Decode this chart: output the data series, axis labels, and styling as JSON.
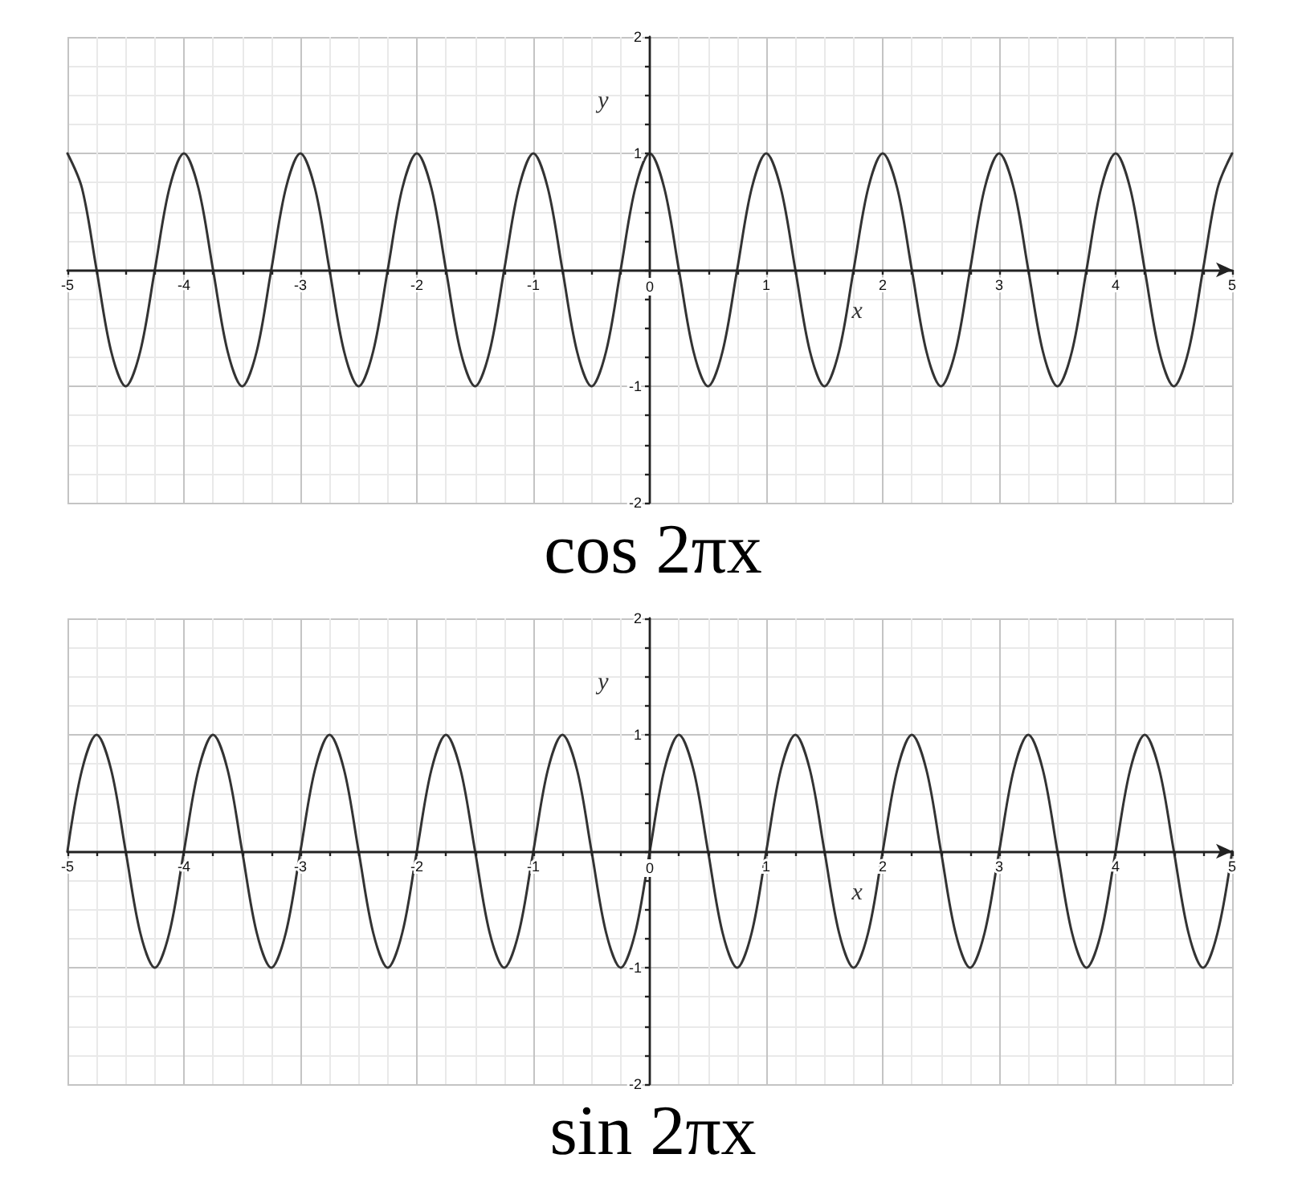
{
  "chart_data": [
    {
      "type": "line",
      "title": "cos 2πx",
      "xlabel": "x",
      "ylabel": "y",
      "x": [
        -5,
        -4.875,
        -4.75,
        -4.625,
        -4.5,
        -4.375,
        -4.25,
        -4.125,
        -4,
        -3.875,
        -3.75,
        -3.625,
        -3.5,
        -3.375,
        -3.25,
        -3.125,
        -3,
        -2.875,
        -2.75,
        -2.625,
        -2.5,
        -2.375,
        -2.25,
        -2.125,
        -2,
        -1.875,
        -1.75,
        -1.625,
        -1.5,
        -1.375,
        -1.25,
        -1.125,
        -1,
        -0.875,
        -0.75,
        -0.625,
        -0.5,
        -0.375,
        -0.25,
        -0.125,
        0,
        0.125,
        0.25,
        0.375,
        0.5,
        0.625,
        0.75,
        0.875,
        1,
        1.125,
        1.25,
        1.375,
        1.5,
        1.625,
        1.75,
        1.875,
        2,
        2.125,
        2.25,
        2.375,
        2.5,
        2.625,
        2.75,
        2.875,
        3,
        3.125,
        3.25,
        3.375,
        3.5,
        3.625,
        3.75,
        3.875,
        4,
        4.125,
        4.25,
        4.375,
        4.5,
        4.625,
        4.75,
        4.875,
        5
      ],
      "series": [
        {
          "color": "#333333",
          "values": [
            1,
            0.7,
            0,
            -0.7,
            -1,
            -0.7,
            0,
            0.7,
            1,
            0.7,
            0,
            -0.7,
            -1,
            -0.7,
            0,
            0.7,
            1,
            0.7,
            0,
            -0.7,
            -1,
            -0.7,
            0,
            0.7,
            1,
            0.7,
            0,
            -0.7,
            -1,
            -0.7,
            0,
            0.7,
            1,
            0.7,
            0,
            -0.7,
            -1,
            -0.7,
            0,
            0.7,
            1,
            0.7,
            0,
            -0.7,
            -1,
            -0.7,
            0,
            0.7,
            1,
            0.7,
            0,
            -0.7,
            -1,
            -0.7,
            0,
            0.7,
            1,
            0.7,
            0,
            -0.7,
            -1,
            -0.7,
            0,
            0.7,
            1,
            0.7,
            0,
            -0.7,
            -1,
            -0.7,
            0,
            0.7,
            1,
            0.7,
            0,
            -0.7,
            -1,
            -0.7,
            0,
            0.7,
            1
          ]
        }
      ],
      "xlim": [
        -5,
        5
      ],
      "ylim": [
        -2,
        2
      ],
      "xticks": [
        -5,
        {
          "value": -4.75,
          "label": null
        },
        {
          "value": -4.5,
          "label": null
        },
        {
          "value": -4.25,
          "label": null
        },
        -4,
        {
          "value": -3.75,
          "label": null
        },
        {
          "value": -3.5,
          "label": null
        },
        {
          "value": -3.25,
          "label": null
        },
        -3,
        {
          "value": -2.75,
          "label": null
        },
        {
          "value": -2.5,
          "label": null
        },
        {
          "value": -2.25,
          "label": null
        },
        -2,
        {
          "value": -1.75,
          "label": null
        },
        {
          "value": -1.5,
          "label": null
        },
        {
          "value": -1.25,
          "label": null
        },
        -1,
        {
          "value": -0.75,
          "label": null
        },
        {
          "value": -0.5,
          "label": null
        },
        {
          "value": -0.25,
          "label": null
        },
        0,
        {
          "value": 0.25,
          "label": null
        },
        {
          "value": 0.5,
          "label": null
        },
        {
          "value": 0.75,
          "label": null
        },
        1,
        {
          "value": 1.25,
          "label": null
        },
        {
          "value": 1.5,
          "label": null
        },
        {
          "value": 1.75,
          "label": null
        },
        2,
        {
          "value": 2.25,
          "label": null
        },
        {
          "value": 2.5,
          "label": null
        },
        {
          "value": 2.75,
          "label": null
        },
        3,
        {
          "value": 3.25,
          "label": null
        },
        {
          "value": 3.5,
          "label": null
        },
        {
          "value": 3.75,
          "label": null
        },
        4,
        {
          "value": 4.25,
          "label": null
        },
        {
          "value": 4.5,
          "label": null
        },
        {
          "value": 4.75,
          "label": null
        },
        5
      ],
      "yticks": [
        -2,
        {
          "value": -1.75,
          "label": null
        },
        {
          "value": -1.5,
          "label": null
        },
        {
          "value": -1.25,
          "label": null
        },
        -1,
        {
          "value": -0.75,
          "label": null
        },
        {
          "value": -0.5,
          "label": null
        },
        {
          "value": -0.25,
          "label": null
        },
        {
          "value": 0,
          "label": null
        },
        {
          "value": 0.25,
          "label": null
        },
        {
          "value": 0.5,
          "label": null
        },
        {
          "value": 0.75,
          "label": null
        },
        1,
        {
          "value": 1.25,
          "label": null
        },
        {
          "value": 1.5,
          "label": null
        },
        {
          "value": 1.75,
          "label": null
        },
        2
      ],
      "grid": true,
      "marker": "none",
      "line_style": "solid"
    },
    {
      "type": "line",
      "title": "sin 2πx",
      "xlabel": "x",
      "ylabel": "y",
      "x": [
        -5,
        -4.875,
        -4.75,
        -4.625,
        -4.5,
        -4.375,
        -4.25,
        -4.125,
        -4,
        -3.875,
        -3.75,
        -3.625,
        -3.5,
        -3.375,
        -3.25,
        -3.125,
        -3,
        -2.875,
        -2.75,
        -2.625,
        -2.5,
        -2.375,
        -2.25,
        -2.125,
        -2,
        -1.875,
        -1.75,
        -1.625,
        -1.5,
        -1.375,
        -1.25,
        -1.125,
        -1,
        -0.875,
        -0.75,
        -0.625,
        -0.5,
        -0.375,
        -0.25,
        -0.125,
        0,
        0.125,
        0.25,
        0.375,
        0.5,
        0.625,
        0.75,
        0.875,
        1,
        1.125,
        1.25,
        1.375,
        1.5,
        1.625,
        1.75,
        1.875,
        2,
        2.125,
        2.25,
        2.375,
        2.5,
        2.625,
        2.75,
        2.875,
        3,
        3.125,
        3.25,
        3.375,
        3.5,
        3.625,
        3.75,
        3.875,
        4,
        4.125,
        4.25,
        4.375,
        4.5,
        4.625,
        4.75,
        4.875,
        5
      ],
      "series": [
        {
          "color": "#333333",
          "values": [
            0,
            0.7,
            1,
            0.7,
            0,
            -0.7,
            -1,
            -0.7,
            0,
            0.7,
            1,
            0.7,
            0,
            -0.7,
            -1,
            -0.7,
            0,
            0.7,
            1,
            0.7,
            0,
            -0.7,
            -1,
            -0.7,
            0,
            0.7,
            1,
            0.7,
            0,
            -0.7,
            -1,
            -0.7,
            0,
            0.7,
            1,
            0.7,
            0,
            -0.7,
            -1,
            -0.7,
            0,
            0.7,
            1,
            0.7,
            0,
            -0.7,
            -1,
            -0.7,
            0,
            0.7,
            1,
            0.7,
            0,
            -0.7,
            -1,
            -0.7,
            0,
            0.7,
            1,
            0.7,
            0,
            -0.7,
            -1,
            -0.7,
            0,
            0.7,
            1,
            0.7,
            0,
            -0.7,
            -1,
            -0.7,
            0,
            0.7,
            1,
            0.7,
            0,
            -0.7,
            -1,
            -0.7,
            0
          ]
        }
      ],
      "xlim": [
        -5,
        5
      ],
      "ylim": [
        -2,
        2
      ],
      "xticks": [
        -5,
        {
          "value": -4.75,
          "label": null
        },
        {
          "value": -4.5,
          "label": null
        },
        {
          "value": -4.25,
          "label": null
        },
        -4,
        {
          "value": -3.75,
          "label": null
        },
        {
          "value": -3.5,
          "label": null
        },
        {
          "value": -3.25,
          "label": null
        },
        -3,
        {
          "value": -2.75,
          "label": null
        },
        {
          "value": -2.5,
          "label": null
        },
        {
          "value": -2.25,
          "label": null
        },
        -2,
        {
          "value": -1.75,
          "label": null
        },
        {
          "value": -1.5,
          "label": null
        },
        {
          "value": -1.25,
          "label": null
        },
        -1,
        {
          "value": -0.75,
          "label": null
        },
        {
          "value": -0.5,
          "label": null
        },
        {
          "value": -0.25,
          "label": null
        },
        0,
        {
          "value": 0.25,
          "label": null
        },
        {
          "value": 0.5,
          "label": null
        },
        {
          "value": 0.75,
          "label": null
        },
        1,
        {
          "value": 1.25,
          "label": null
        },
        {
          "value": 1.5,
          "label": null
        },
        {
          "value": 1.75,
          "label": null
        },
        2,
        {
          "value": 2.25,
          "label": null
        },
        {
          "value": 2.5,
          "label": null
        },
        {
          "value": 2.75,
          "label": null
        },
        3,
        {
          "value": 3.25,
          "label": null
        },
        {
          "value": 3.5,
          "label": null
        },
        {
          "value": 3.75,
          "label": null
        },
        4,
        {
          "value": 4.25,
          "label": null
        },
        {
          "value": 4.5,
          "label": null
        },
        {
          "value": 4.75,
          "label": null
        },
        5
      ],
      "yticks": [
        -2,
        {
          "value": -1.75,
          "label": null
        },
        {
          "value": -1.5,
          "label": null
        },
        {
          "value": -1.25,
          "label": null
        },
        -1,
        {
          "value": -0.75,
          "label": null
        },
        {
          "value": -0.5,
          "label": null
        },
        {
          "value": -0.25,
          "label": null
        },
        {
          "value": 0,
          "label": null
        },
        {
          "value": 0.25,
          "label": null
        },
        {
          "value": 0.5,
          "label": null
        },
        {
          "value": 0.75,
          "label": null
        },
        1,
        {
          "value": 1.25,
          "label": null
        },
        {
          "value": 1.5,
          "label": null
        },
        {
          "value": 1.75,
          "label": null
        },
        2
      ],
      "grid": true,
      "marker": "none",
      "line_style": "solid"
    }
  ]
}
